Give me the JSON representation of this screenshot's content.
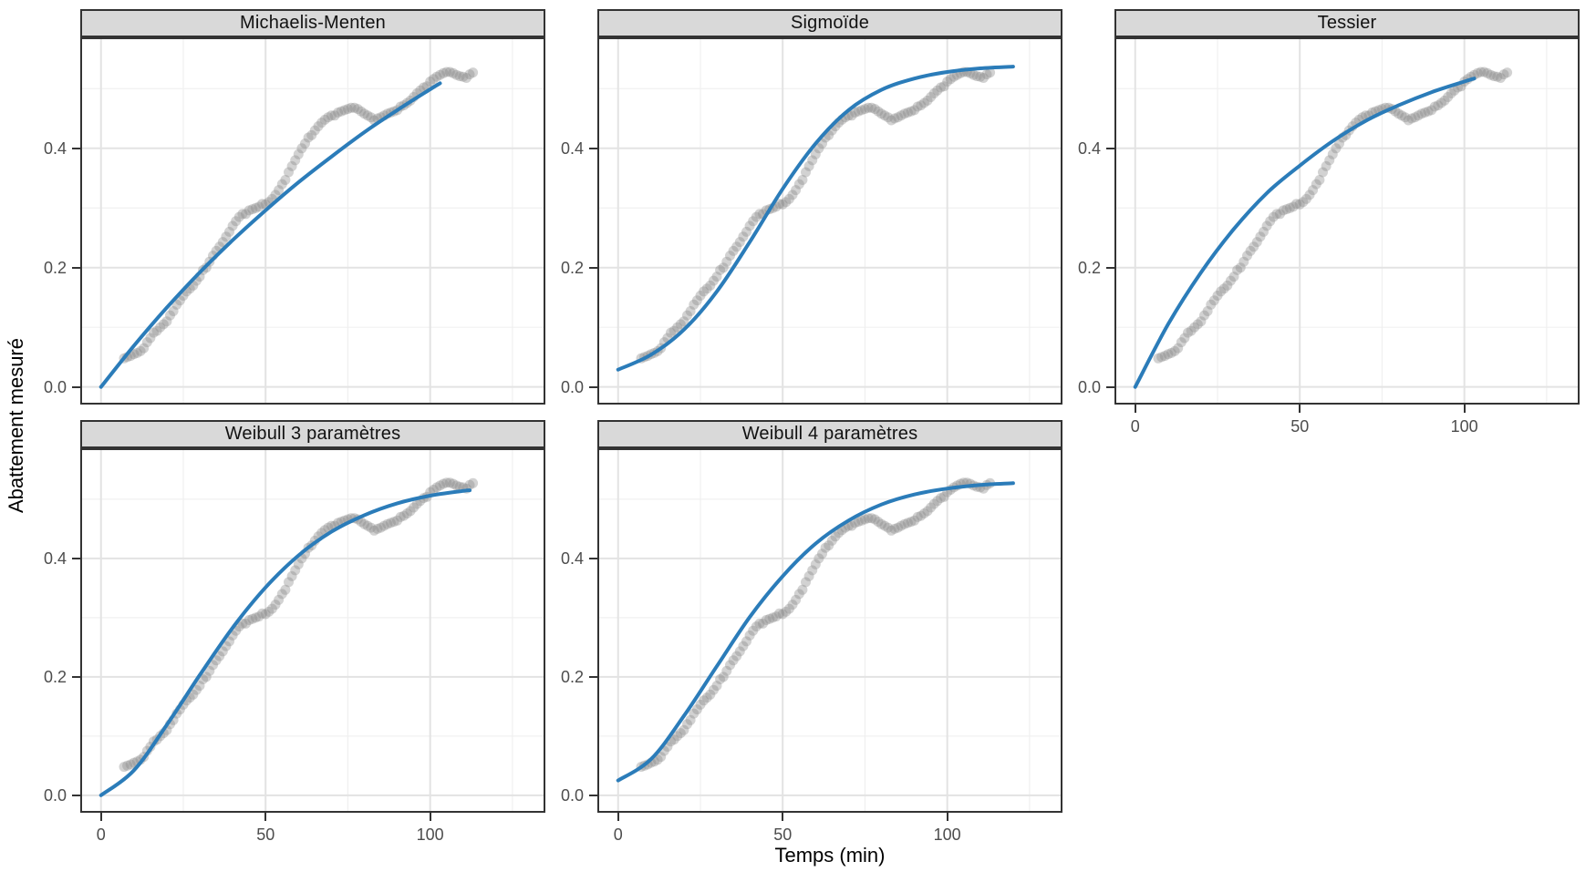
{
  "chart_data": {
    "type": "scatter",
    "title": "",
    "xlabel": "Temps (min)",
    "ylabel": "Abattement mesuré",
    "legend": "none",
    "grid": "on",
    "xlim": [
      -6.3,
      135
    ],
    "ylim": [
      -0.0295,
      0.586
    ],
    "x_ticks": [
      {
        "value": 0,
        "label": "0"
      },
      {
        "value": 50,
        "label": "50"
      },
      {
        "value": 100,
        "label": "100"
      }
    ],
    "x_minor": [
      25,
      75,
      125
    ],
    "y_ticks": [
      {
        "value": 0.0,
        "label": "0.0"
      },
      {
        "value": 0.2,
        "label": "0.2"
      },
      {
        "value": 0.4,
        "label": "0.4"
      }
    ],
    "y_minor": [
      0.1,
      0.3,
      0.5
    ],
    "measured_points": [
      [
        7,
        0.048
      ],
      [
        8,
        0.05
      ],
      [
        9,
        0.052
      ],
      [
        10,
        0.055
      ],
      [
        11,
        0.057
      ],
      [
        12,
        0.06
      ],
      [
        13,
        0.065
      ],
      [
        14,
        0.075
      ],
      [
        15,
        0.082
      ],
      [
        16,
        0.091
      ],
      [
        17,
        0.094
      ],
      [
        18,
        0.1
      ],
      [
        19,
        0.105
      ],
      [
        20,
        0.11
      ],
      [
        21,
        0.12
      ],
      [
        22,
        0.127
      ],
      [
        23,
        0.138
      ],
      [
        24,
        0.145
      ],
      [
        25,
        0.153
      ],
      [
        26,
        0.16
      ],
      [
        27,
        0.165
      ],
      [
        28,
        0.17
      ],
      [
        29,
        0.178
      ],
      [
        30,
        0.185
      ],
      [
        31,
        0.196
      ],
      [
        32,
        0.2
      ],
      [
        33,
        0.21
      ],
      [
        34,
        0.22
      ],
      [
        35,
        0.228
      ],
      [
        36,
        0.235
      ],
      [
        37,
        0.243
      ],
      [
        38,
        0.252
      ],
      [
        39,
        0.26
      ],
      [
        40,
        0.27
      ],
      [
        41,
        0.278
      ],
      [
        42,
        0.285
      ],
      [
        43,
        0.29
      ],
      [
        44,
        0.29
      ],
      [
        45,
        0.296
      ],
      [
        46,
        0.298
      ],
      [
        47,
        0.3
      ],
      [
        48,
        0.302
      ],
      [
        49,
        0.307
      ],
      [
        50,
        0.306
      ],
      [
        51,
        0.31
      ],
      [
        52,
        0.315
      ],
      [
        53,
        0.322
      ],
      [
        54,
        0.33
      ],
      [
        55,
        0.34
      ],
      [
        56,
        0.347
      ],
      [
        57,
        0.36
      ],
      [
        58,
        0.37
      ],
      [
        59,
        0.38
      ],
      [
        60,
        0.39
      ],
      [
        61,
        0.4
      ],
      [
        62,
        0.408
      ],
      [
        63,
        0.418
      ],
      [
        64,
        0.422
      ],
      [
        65,
        0.43
      ],
      [
        66,
        0.437
      ],
      [
        67,
        0.443
      ],
      [
        68,
        0.448
      ],
      [
        69,
        0.452
      ],
      [
        70,
        0.455
      ],
      [
        71,
        0.455
      ],
      [
        72,
        0.46
      ],
      [
        73,
        0.462
      ],
      [
        74,
        0.464
      ],
      [
        75,
        0.466
      ],
      [
        76,
        0.468
      ],
      [
        77,
        0.468
      ],
      [
        78,
        0.466
      ],
      [
        79,
        0.462
      ],
      [
        80,
        0.458
      ],
      [
        81,
        0.455
      ],
      [
        82,
        0.452
      ],
      [
        83,
        0.447
      ],
      [
        84,
        0.45
      ],
      [
        85,
        0.452
      ],
      [
        86,
        0.455
      ],
      [
        87,
        0.458
      ],
      [
        88,
        0.46
      ],
      [
        89,
        0.462
      ],
      [
        90,
        0.464
      ],
      [
        91,
        0.47
      ],
      [
        92,
        0.472
      ],
      [
        93,
        0.476
      ],
      [
        94,
        0.48
      ],
      [
        95,
        0.486
      ],
      [
        96,
        0.492
      ],
      [
        97,
        0.497
      ],
      [
        98,
        0.502
      ],
      [
        99,
        0.504
      ],
      [
        100,
        0.512
      ],
      [
        101,
        0.516
      ],
      [
        102,
        0.52
      ],
      [
        103,
        0.523
      ],
      [
        104,
        0.526
      ],
      [
        105,
        0.528
      ],
      [
        106,
        0.528
      ],
      [
        107,
        0.526
      ],
      [
        108,
        0.523
      ],
      [
        109,
        0.521
      ],
      [
        110,
        0.52
      ],
      [
        111,
        0.518
      ],
      [
        112,
        0.524
      ],
      [
        113,
        0.527
      ]
    ],
    "facets": [
      {
        "label": "Michaelis-Menten",
        "curve": [
          [
            0,
            0
          ],
          [
            10,
            0.069
          ],
          [
            20,
            0.133
          ],
          [
            30,
            0.192
          ],
          [
            40,
            0.246
          ],
          [
            50,
            0.296
          ],
          [
            60,
            0.343
          ],
          [
            70,
            0.386
          ],
          [
            80,
            0.427
          ],
          [
            90,
            0.464
          ],
          [
            100,
            0.499
          ],
          [
            103,
            0.509
          ]
        ]
      },
      {
        "label": "Sigmoïde",
        "curve": [
          [
            0,
            0.029
          ],
          [
            10,
            0.054
          ],
          [
            20,
            0.096
          ],
          [
            30,
            0.16
          ],
          [
            40,
            0.243
          ],
          [
            50,
            0.332
          ],
          [
            60,
            0.408
          ],
          [
            70,
            0.464
          ],
          [
            80,
            0.498
          ],
          [
            90,
            0.517
          ],
          [
            100,
            0.528
          ],
          [
            110,
            0.534
          ],
          [
            120,
            0.537
          ]
        ]
      },
      {
        "label": "Tessier",
        "curve": [
          [
            0,
            0
          ],
          [
            10,
            0.105
          ],
          [
            20,
            0.192
          ],
          [
            30,
            0.265
          ],
          [
            40,
            0.325
          ],
          [
            50,
            0.371
          ],
          [
            60,
            0.412
          ],
          [
            70,
            0.446
          ],
          [
            80,
            0.472
          ],
          [
            90,
            0.494
          ],
          [
            100,
            0.512
          ],
          [
            103,
            0.517
          ]
        ]
      },
      {
        "label": "Weibull 3 paramètres",
        "curve": [
          [
            0,
            0
          ],
          [
            10,
            0.042
          ],
          [
            20,
            0.119
          ],
          [
            30,
            0.203
          ],
          [
            40,
            0.283
          ],
          [
            50,
            0.351
          ],
          [
            60,
            0.405
          ],
          [
            70,
            0.445
          ],
          [
            80,
            0.473
          ],
          [
            90,
            0.493
          ],
          [
            100,
            0.506
          ],
          [
            110,
            0.514
          ],
          [
            112,
            0.515
          ]
        ]
      },
      {
        "label": "Weibull 4 paramètres",
        "curve": [
          [
            0,
            0.025
          ],
          [
            10,
            0.061
          ],
          [
            20,
            0.134
          ],
          [
            30,
            0.218
          ],
          [
            40,
            0.301
          ],
          [
            50,
            0.37
          ],
          [
            60,
            0.425
          ],
          [
            70,
            0.464
          ],
          [
            80,
            0.491
          ],
          [
            90,
            0.508
          ],
          [
            100,
            0.518
          ],
          [
            110,
            0.524
          ],
          [
            120,
            0.527
          ]
        ]
      }
    ]
  },
  "style": {
    "curve_color": "#2b7cb9",
    "point_color": "#8a8a8a",
    "strip_bg": "#d9d9d9",
    "strip_border": "#333333",
    "panel_border": "#333333",
    "grid_major": "#e3e3e3",
    "grid_minor": "#f0f0f0",
    "tick_color": "#333333",
    "axis_text_color": "#4d4d4d"
  }
}
